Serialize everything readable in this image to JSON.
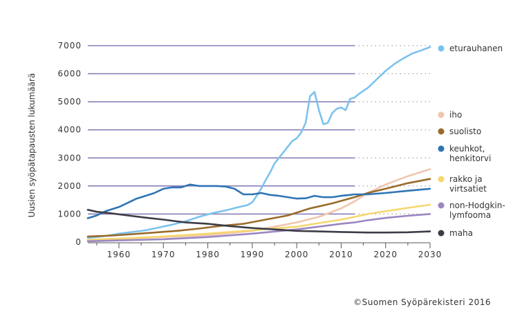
{
  "chart_data": {
    "type": "line",
    "ylabel": "Uusien syöpätapausten lukumäärä",
    "xlim": [
      1953,
      2030
    ],
    "ylim": [
      0,
      7000
    ],
    "x_ticks": [
      1960,
      1970,
      1980,
      1990,
      2000,
      2010,
      2020,
      2030
    ],
    "y_ticks": [
      0,
      1000,
      2000,
      3000,
      4000,
      5000,
      6000,
      7000
    ],
    "observed_until": 2013,
    "grid": "horizontal",
    "legend_position": "right",
    "series": [
      {
        "name": "eturauhanen",
        "color": "#7cc2ee",
        "x": [
          1953,
          1955,
          1957,
          1960,
          1963,
          1966,
          1969,
          1972,
          1975,
          1978,
          1981,
          1984,
          1987,
          1989,
          1990,
          1991,
          1992,
          1993,
          1994,
          1995,
          1996,
          1997,
          1998,
          1999,
          2000,
          2001,
          2002,
          2003,
          2004,
          2005,
          2006,
          2007,
          2008,
          2009,
          2010,
          2011,
          2012,
          2013,
          2014,
          2016,
          2018,
          2020,
          2022,
          2024,
          2026,
          2028,
          2030
        ],
        "y": [
          150,
          180,
          220,
          300,
          360,
          420,
          520,
          620,
          740,
          900,
          1030,
          1130,
          1250,
          1320,
          1420,
          1650,
          1900,
          2200,
          2480,
          2800,
          3000,
          3200,
          3400,
          3600,
          3700,
          3900,
          4250,
          5200,
          5350,
          4700,
          4200,
          4250,
          4600,
          4750,
          4800,
          4700,
          5100,
          5150,
          5280,
          5500,
          5800,
          6100,
          6350,
          6550,
          6720,
          6830,
          6950
        ]
      },
      {
        "name": "iho",
        "color": "#f0c6ad",
        "x": [
          1953,
          1960,
          1970,
          1980,
          1990,
          2000,
          2005,
          2010,
          2013,
          2016,
          2020,
          2025,
          2030
        ],
        "y": [
          80,
          120,
          180,
          250,
          400,
          700,
          900,
          1200,
          1450,
          1750,
          2050,
          2350,
          2600
        ]
      },
      {
        "name": "suolisto",
        "color": "#9a6a2a",
        "x": [
          1953,
          1958,
          1963,
          1968,
          1973,
          1978,
          1983,
          1988,
          1993,
          1998,
          2003,
          2008,
          2013,
          2016,
          2020,
          2025,
          2030
        ],
        "y": [
          200,
          230,
          280,
          340,
          400,
          480,
          580,
          650,
          800,
          950,
          1200,
          1380,
          1600,
          1750,
          1900,
          2100,
          2250
        ]
      },
      {
        "name": "keuhkot, henkitorvi",
        "color": "#2e74b5",
        "x": [
          1953,
          1955,
          1957,
          1960,
          1962,
          1964,
          1966,
          1968,
          1970,
          1972,
          1974,
          1976,
          1978,
          1980,
          1982,
          1984,
          1986,
          1988,
          1990,
          1992,
          1994,
          1996,
          1998,
          2000,
          2002,
          2004,
          2006,
          2008,
          2010,
          2012,
          2013,
          2016,
          2020,
          2025,
          2030
        ],
        "y": [
          850,
          950,
          1100,
          1250,
          1400,
          1550,
          1650,
          1750,
          1900,
          1950,
          1950,
          2050,
          2000,
          2000,
          2000,
          1980,
          1900,
          1700,
          1700,
          1750,
          1680,
          1650,
          1600,
          1550,
          1560,
          1650,
          1600,
          1600,
          1650,
          1680,
          1700,
          1700,
          1750,
          1830,
          1900
        ]
      },
      {
        "name": "rakko ja virtsatiet",
        "color": "#f5d76e",
        "x": [
          1953,
          1960,
          1970,
          1980,
          1990,
          2000,
          2010,
          2013,
          2016,
          2020,
          2025,
          2030
        ],
        "y": [
          80,
          120,
          200,
          300,
          420,
          550,
          800,
          900,
          1000,
          1100,
          1220,
          1330
        ]
      },
      {
        "name": "non-Hodgkin-lymfooma",
        "color": "#9b86c2",
        "x": [
          1953,
          1960,
          1970,
          1980,
          1990,
          2000,
          2005,
          2010,
          2013,
          2016,
          2020,
          2025,
          2030
        ],
        "y": [
          30,
          60,
          100,
          180,
          300,
          450,
          550,
          650,
          700,
          780,
          860,
          940,
          1000
        ]
      },
      {
        "name": "maha",
        "color": "#3c3c46",
        "x": [
          1953,
          1955,
          1958,
          1962,
          1966,
          1970,
          1975,
          1980,
          1985,
          1990,
          1995,
          2000,
          2005,
          2010,
          2013,
          2016,
          2020,
          2025,
          2030
        ],
        "y": [
          1150,
          1080,
          1030,
          950,
          870,
          800,
          700,
          650,
          570,
          500,
          450,
          400,
          380,
          360,
          350,
          340,
          340,
          350,
          380
        ]
      }
    ]
  },
  "legend": [
    {
      "label": "eturauhanen",
      "color": "#7cc2ee"
    },
    {
      "label": "iho",
      "color": "#f0c6ad"
    },
    {
      "label": "suolisto",
      "color": "#9a6a2a"
    },
    {
      "label": "keuhkot, henkitorvi",
      "color": "#2e74b5"
    },
    {
      "label": "rakko ja virtsatiet",
      "color": "#f5d76e"
    },
    {
      "label": "non-Hodgkin-lymfooma",
      "color": "#9b86c2"
    },
    {
      "label": "maha",
      "color": "#3c3c46"
    }
  ],
  "credit": "©Suomen Syöpärekisteri 2016",
  "gridline_color": "#8a7fb8"
}
